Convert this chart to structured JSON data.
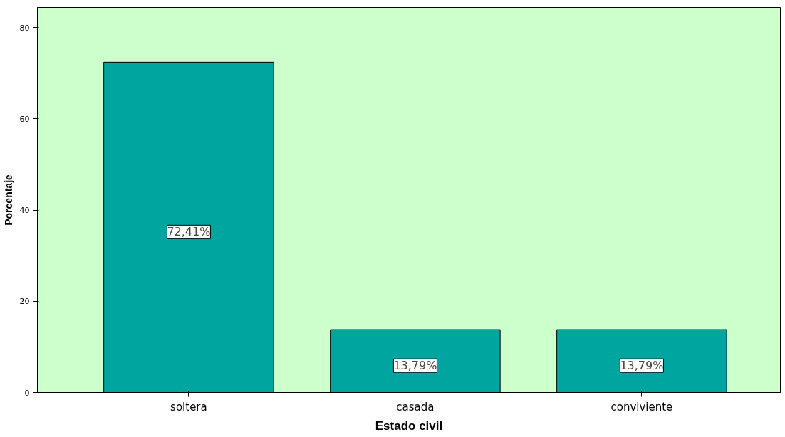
{
  "chart_data": {
    "type": "bar",
    "xlabel": "Estado civil",
    "ylabel": "Porcentaje",
    "categories": [
      "soltera",
      "casada",
      "conviviente"
    ],
    "values": [
      72.41,
      13.79,
      13.79
    ],
    "value_labels": [
      "72,41%",
      "13,79%",
      "13,79%"
    ],
    "color": "#00a5a0",
    "ylim": [
      0,
      84.4
    ],
    "yticks": [
      0,
      20,
      40,
      60,
      80
    ],
    "grid": false
  }
}
